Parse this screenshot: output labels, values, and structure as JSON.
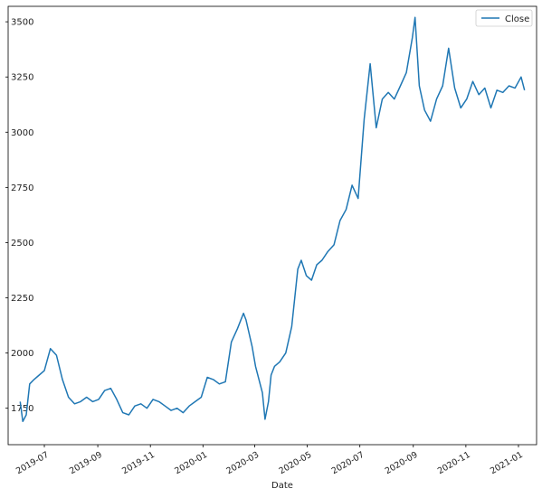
{
  "chart_data": {
    "type": "line",
    "title": "",
    "xlabel": "Date",
    "ylabel": "",
    "x_range": [
      "2019-05-20",
      "2021-01-22"
    ],
    "ylim": [
      1585,
      3570
    ],
    "grid": false,
    "legend_position": "top-right",
    "yticks": [
      1750,
      2000,
      2250,
      2500,
      2750,
      3000,
      3250,
      3500
    ],
    "xticks": [
      "2019-07",
      "2019-09",
      "2019-11",
      "2020-01",
      "2020-03",
      "2020-05",
      "2020-07",
      "2020-09",
      "2020-11",
      "2021-01"
    ],
    "series": [
      {
        "name": "Close",
        "color": "#1f77b4",
        "x": [
          "2019-06-03",
          "2019-06-06",
          "2019-06-10",
          "2019-06-14",
          "2019-06-19",
          "2019-06-25",
          "2019-07-01",
          "2019-07-08",
          "2019-07-15",
          "2019-07-22",
          "2019-07-29",
          "2019-08-05",
          "2019-08-12",
          "2019-08-19",
          "2019-08-26",
          "2019-09-02",
          "2019-09-09",
          "2019-09-16",
          "2019-09-23",
          "2019-09-30",
          "2019-10-07",
          "2019-10-14",
          "2019-10-21",
          "2019-10-28",
          "2019-11-04",
          "2019-11-11",
          "2019-11-18",
          "2019-11-25",
          "2019-12-02",
          "2019-12-09",
          "2019-12-16",
          "2019-12-23",
          "2019-12-30",
          "2020-01-06",
          "2020-01-13",
          "2020-01-20",
          "2020-01-27",
          "2020-02-03",
          "2020-02-10",
          "2020-02-17",
          "2020-02-20",
          "2020-02-27",
          "2020-03-02",
          "2020-03-06",
          "2020-03-10",
          "2020-03-13",
          "2020-03-17",
          "2020-03-20",
          "2020-03-24",
          "2020-03-30",
          "2020-04-06",
          "2020-04-13",
          "2020-04-20",
          "2020-04-24",
          "2020-04-30",
          "2020-05-06",
          "2020-05-12",
          "2020-05-18",
          "2020-05-25",
          "2020-06-01",
          "2020-06-08",
          "2020-06-15",
          "2020-06-22",
          "2020-06-29",
          "2020-07-06",
          "2020-07-13",
          "2020-07-20",
          "2020-07-27",
          "2020-08-03",
          "2020-08-10",
          "2020-08-17",
          "2020-08-24",
          "2020-08-31",
          "2020-09-03",
          "2020-09-08",
          "2020-09-14",
          "2020-09-21",
          "2020-09-28",
          "2020-10-05",
          "2020-10-12",
          "2020-10-19",
          "2020-10-26",
          "2020-11-02",
          "2020-11-09",
          "2020-11-16",
          "2020-11-23",
          "2020-11-30",
          "2020-12-07",
          "2020-12-14",
          "2020-12-21",
          "2020-12-28",
          "2021-01-04",
          "2021-01-08"
        ],
        "values": [
          1780,
          1690,
          1720,
          1860,
          1880,
          1900,
          1920,
          2020,
          1990,
          1880,
          1800,
          1770,
          1780,
          1800,
          1780,
          1790,
          1830,
          1840,
          1790,
          1730,
          1720,
          1760,
          1770,
          1750,
          1790,
          1780,
          1760,
          1740,
          1750,
          1730,
          1760,
          1780,
          1800,
          1890,
          1880,
          1860,
          1870,
          2050,
          2110,
          2180,
          2150,
          2030,
          1940,
          1880,
          1820,
          1700,
          1780,
          1900,
          1940,
          1960,
          2000,
          2120,
          2380,
          2420,
          2350,
          2330,
          2400,
          2420,
          2460,
          2490,
          2600,
          2650,
          2760,
          2700,
          3060,
          3310,
          3020,
          3150,
          3180,
          3150,
          3210,
          3270,
          3430,
          3520,
          3210,
          3100,
          3050,
          3150,
          3210,
          3380,
          3200,
          3110,
          3150,
          3230,
          3170,
          3200,
          3110,
          3190,
          3180,
          3210,
          3200,
          3250,
          3190
        ]
      }
    ]
  }
}
